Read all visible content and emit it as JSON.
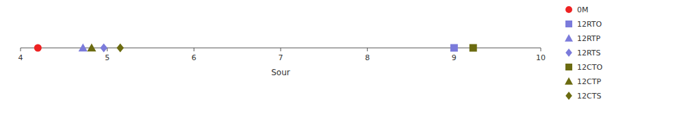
{
  "chart_data": {
    "type": "scatter",
    "title": "",
    "xlabel": "Sour",
    "xlim": [
      4,
      10
    ],
    "xticks": [
      4,
      5,
      6,
      7,
      8,
      9,
      10
    ],
    "ylim": [
      -0.5,
      0.5
    ],
    "yticks": [],
    "tick_labels": "x",
    "grid": false,
    "legend": "right",
    "series": [
      {
        "name": "0M",
        "x": [
          4.2
        ],
        "values": [
          0
        ],
        "marker": "circle",
        "color": "#ee2222"
      },
      {
        "name": "12RTO",
        "x": [
          9.0
        ],
        "values": [
          0
        ],
        "marker": "square",
        "color": "#7b7bdb"
      },
      {
        "name": "12RTP",
        "x": [
          4.72
        ],
        "values": [
          0
        ],
        "marker": "triangle",
        "color": "#7b7bdb"
      },
      {
        "name": "12RTS",
        "x": [
          4.96
        ],
        "values": [
          0
        ],
        "marker": "diamond",
        "color": "#7b7bdb"
      },
      {
        "name": "12CTO",
        "x": [
          9.22
        ],
        "values": [
          0
        ],
        "marker": "square",
        "color": "#6b6b10"
      },
      {
        "name": "12CTP",
        "x": [
          4.82
        ],
        "values": [
          0
        ],
        "marker": "triangle",
        "color": "#6b6b10"
      },
      {
        "name": "12CTS",
        "x": [
          5.15
        ],
        "values": [
          0
        ],
        "marker": "diamond",
        "color": "#6b6b10"
      }
    ]
  }
}
